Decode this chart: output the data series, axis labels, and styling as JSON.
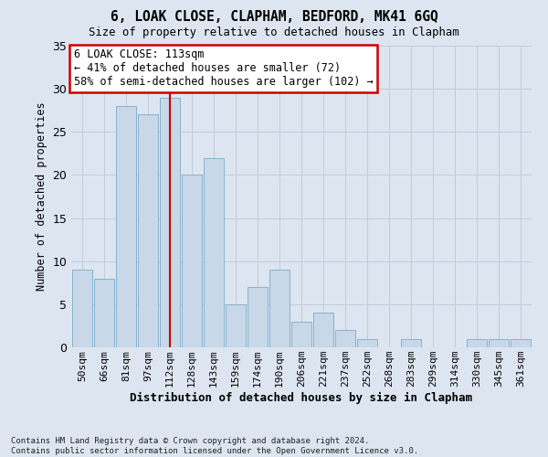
{
  "title1": "6, LOAK CLOSE, CLAPHAM, BEDFORD, MK41 6GQ",
  "title2": "Size of property relative to detached houses in Clapham",
  "xlabel": "Distribution of detached houses by size in Clapham",
  "ylabel": "Number of detached properties",
  "categories": [
    "50sqm",
    "66sqm",
    "81sqm",
    "97sqm",
    "112sqm",
    "128sqm",
    "143sqm",
    "159sqm",
    "174sqm",
    "190sqm",
    "206sqm",
    "221sqm",
    "237sqm",
    "252sqm",
    "268sqm",
    "283sqm",
    "299sqm",
    "314sqm",
    "330sqm",
    "345sqm",
    "361sqm"
  ],
  "values": [
    9,
    8,
    28,
    27,
    29,
    20,
    22,
    5,
    7,
    9,
    3,
    4,
    2,
    1,
    0,
    1,
    0,
    0,
    1,
    1,
    1
  ],
  "property_bin_idx": 4,
  "bar_color": "#c8d8e8",
  "bar_edge_color": "#7aaacb",
  "vline_color": "#cc0000",
  "annotation_text": "6 LOAK CLOSE: 113sqm\n← 41% of detached houses are smaller (72)\n58% of semi-detached houses are larger (102) →",
  "annotation_box_facecolor": "#ffffff",
  "annotation_box_edgecolor": "#cc0000",
  "ylim": [
    0,
    35
  ],
  "yticks": [
    0,
    5,
    10,
    15,
    20,
    25,
    30,
    35
  ],
  "grid_color": "#c0ccd8",
  "bg_color": "#dde6f0",
  "footer": "Contains HM Land Registry data © Crown copyright and database right 2024.\nContains public sector information licensed under the Open Government Licence v3.0."
}
